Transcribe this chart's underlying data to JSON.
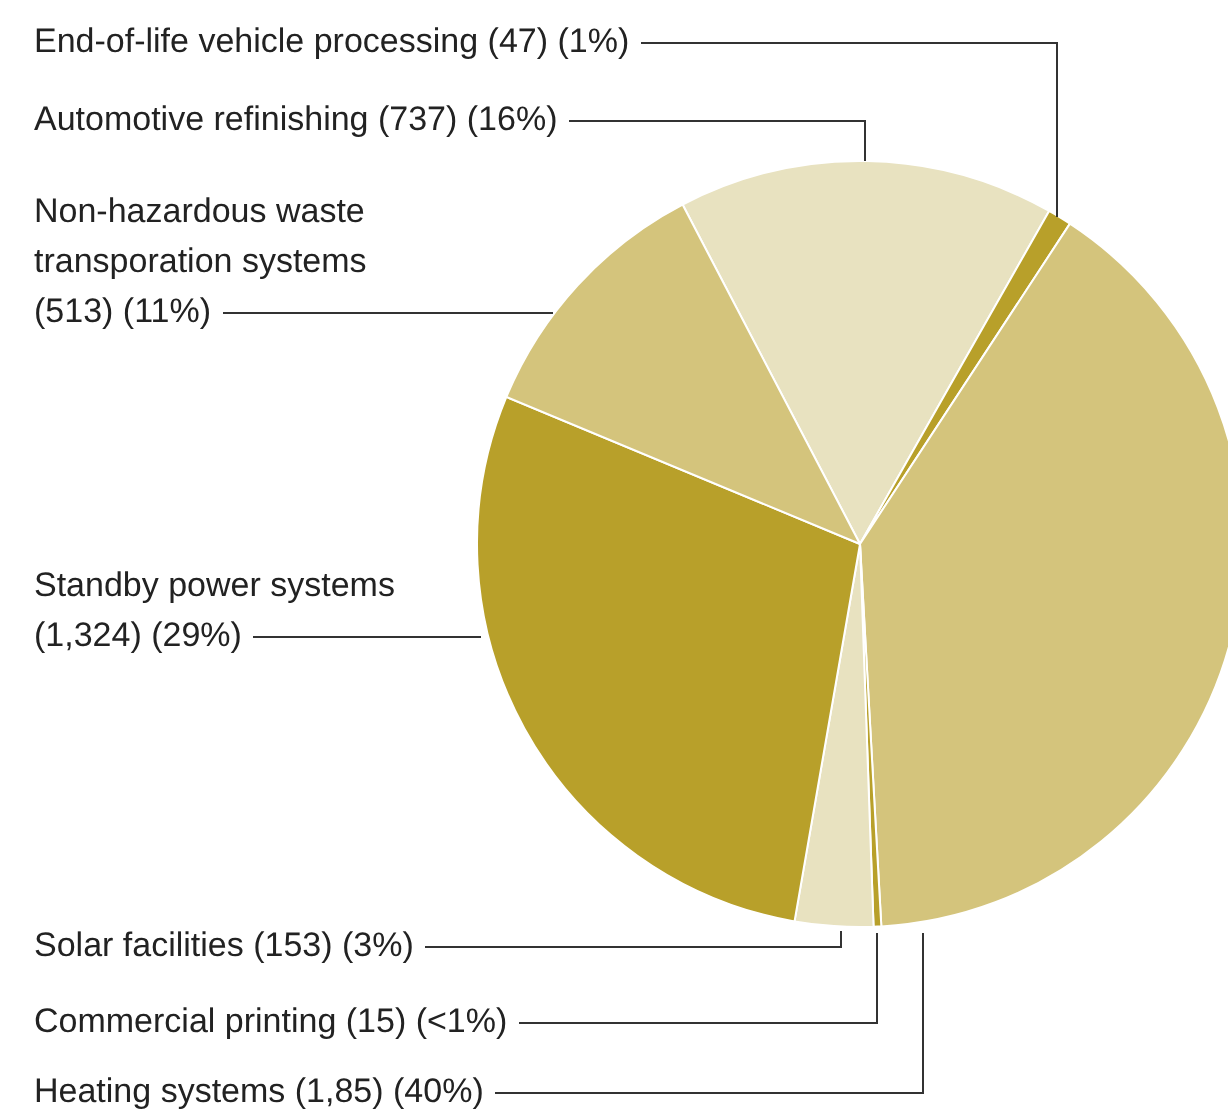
{
  "chart_data": {
    "type": "pie",
    "categories": [
      "Automotive refinishing (737) (16%)",
      "End-of-life vehicle processing (47) (1%)",
      "Heating systems (1,85) (40%)",
      "Commercial printing (15) (<1%)",
      "Solar facilities (153) (3%)",
      "Standby power systems (1,324) (29%)",
      "Non-hazardous waste transporation systems (513) (11%)"
    ],
    "values": [
      737,
      47,
      1850,
      15,
      153,
      1324,
      513
    ],
    "colors": [
      "#e8e2c0",
      "#b8a02a",
      "#d4c47c",
      "#b8a02a",
      "#e8e2c0",
      "#b8a02a",
      "#d4c47c"
    ],
    "legend": false
  }
}
